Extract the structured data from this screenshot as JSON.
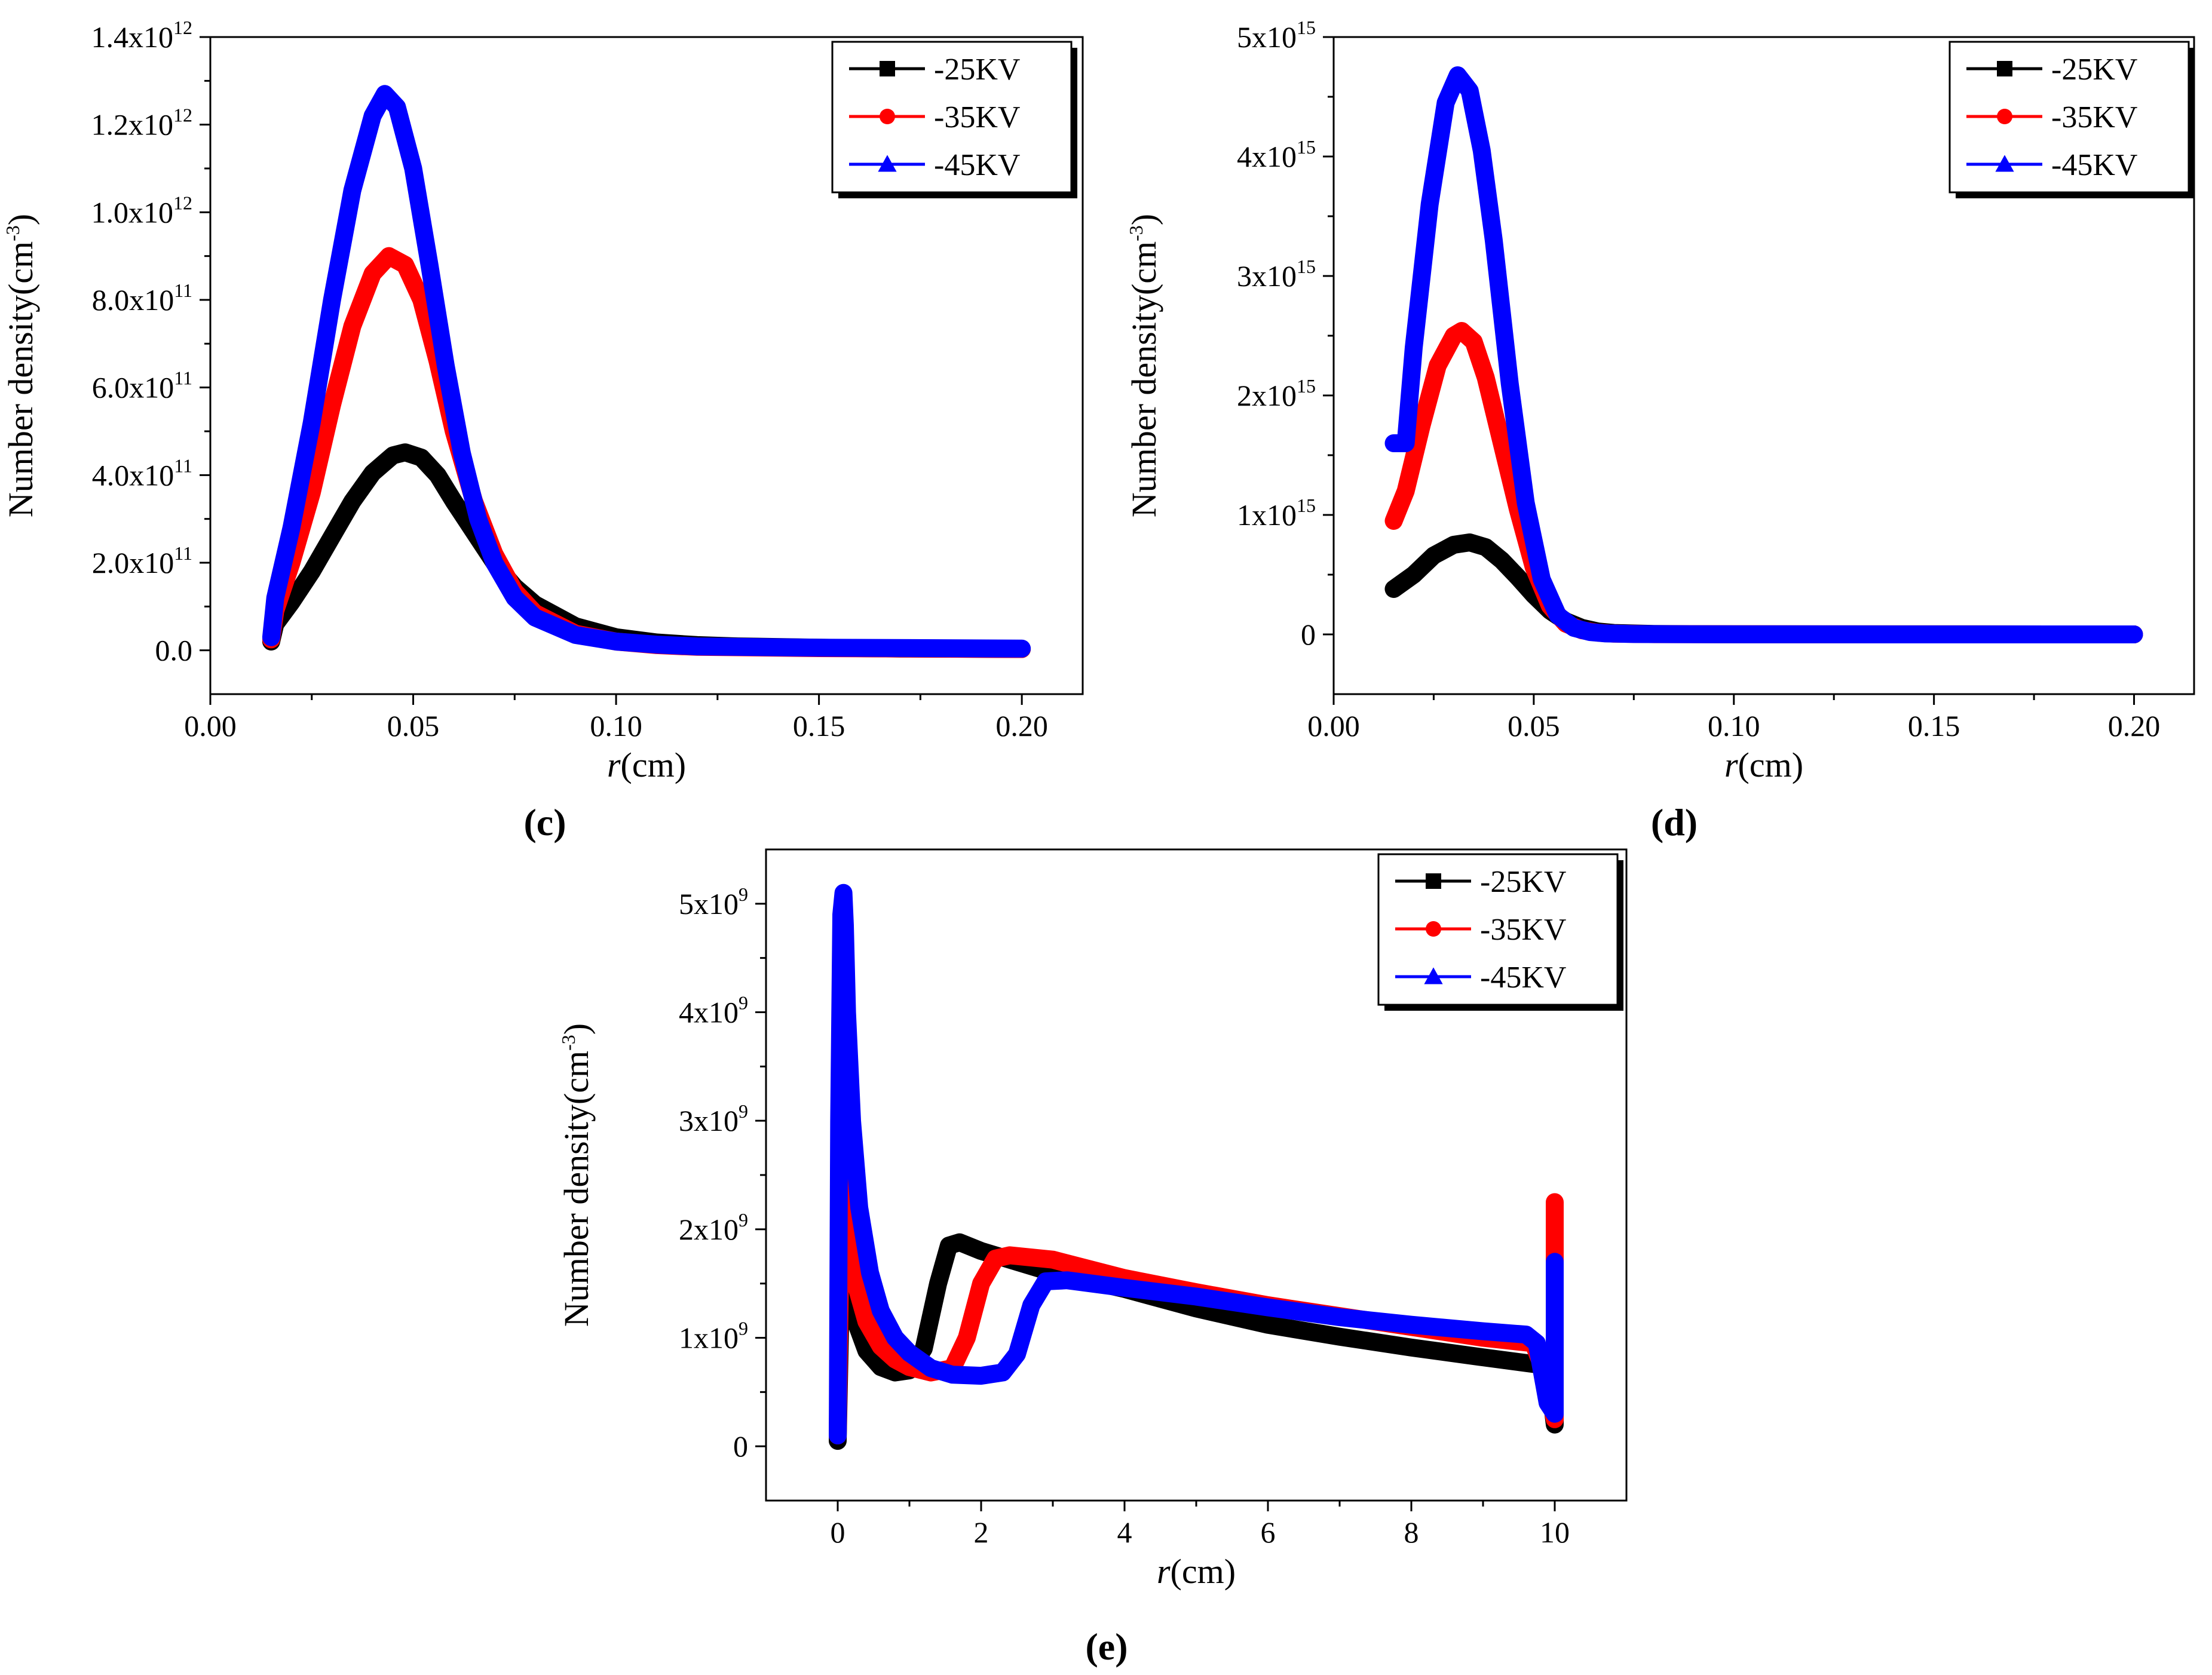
{
  "chart_data": [
    {
      "panel": "c",
      "type": "line",
      "xlabel_italic": "r",
      "xlabel_unit": "(cm)",
      "ylabel_base": "Number density(cm",
      "ylabel_exp": "-3",
      "ylabel_close": ")",
      "xlim": [
        0.0,
        0.215
      ],
      "ylim": [
        -100000000000.0,
        1400000000000.0
      ],
      "xticks": [
        0.0,
        0.05,
        0.1,
        0.15,
        0.2
      ],
      "xtick_labels": [
        "0.00",
        "0.05",
        "0.10",
        "0.15",
        "0.20"
      ],
      "yticks": [
        0,
        200000000000.0,
        400000000000.0,
        600000000000.0,
        800000000000.0,
        1000000000000.0,
        1200000000000.0,
        1400000000000.0
      ],
      "ytick_labels": [
        {
          "base": "0.0",
          "exp": ""
        },
        {
          "base": "2.0x10",
          "exp": "11"
        },
        {
          "base": "4.0x10",
          "exp": "11"
        },
        {
          "base": "6.0x10",
          "exp": "11"
        },
        {
          "base": "8.0x10",
          "exp": "11"
        },
        {
          "base": "1.0x10",
          "exp": "12"
        },
        {
          "base": "1.2x10",
          "exp": "12"
        },
        {
          "base": "1.4x10",
          "exp": "12"
        }
      ],
      "legend_position": "top-right",
      "series": [
        {
          "name": "-25KV",
          "color": "#000000",
          "marker": "square",
          "x": [
            0.015,
            0.016,
            0.02,
            0.025,
            0.03,
            0.035,
            0.04,
            0.045,
            0.048,
            0.052,
            0.056,
            0.06,
            0.065,
            0.07,
            0.075,
            0.08,
            0.09,
            0.1,
            0.11,
            0.12,
            0.13,
            0.15,
            0.17,
            0.2
          ],
          "values": [
            20000000000.0,
            60000000000.0,
            110000000000.0,
            180000000000.0,
            260000000000.0,
            340000000000.0,
            405000000000.0,
            445000000000.0,
            452000000000.0,
            440000000000.0,
            400000000000.0,
            340000000000.0,
            270000000000.0,
            200000000000.0,
            145000000000.0,
            105000000000.0,
            55000000000.0,
            30000000000.0,
            18000000000.0,
            12000000000.0,
            9000000000.0,
            6000000000.0,
            4000000000.0,
            3000000000.0
          ]
        },
        {
          "name": "-35KV",
          "color": "#ff0000",
          "marker": "circle",
          "x": [
            0.015,
            0.016,
            0.02,
            0.025,
            0.03,
            0.035,
            0.04,
            0.044,
            0.048,
            0.052,
            0.056,
            0.06,
            0.065,
            0.07,
            0.075,
            0.08,
            0.09,
            0.1,
            0.11,
            0.12,
            0.15,
            0.2
          ],
          "values": [
            25000000000.0,
            90000000000.0,
            200000000000.0,
            360000000000.0,
            560000000000.0,
            740000000000.0,
            860000000000.0,
            900000000000.0,
            880000000000.0,
            800000000000.0,
            660000000000.0,
            500000000000.0,
            340000000000.0,
            220000000000.0,
            135000000000.0,
            85000000000.0,
            38000000000.0,
            20000000000.0,
            12000000000.0,
            8000000000.0,
            5000000000.0,
            3000000000.0
          ]
        },
        {
          "name": "-45KV",
          "color": "#0000ff",
          "marker": "triangle",
          "x": [
            0.015,
            0.016,
            0.02,
            0.025,
            0.03,
            0.035,
            0.04,
            0.043,
            0.046,
            0.05,
            0.054,
            0.058,
            0.062,
            0.066,
            0.07,
            0.075,
            0.08,
            0.09,
            0.1,
            0.11,
            0.12,
            0.15,
            0.2
          ],
          "values": [
            30000000000.0,
            120000000000.0,
            280000000000.0,
            520000000000.0,
            800000000000.0,
            1050000000000.0,
            1220000000000.0,
            1270000000000.0,
            1240000000000.0,
            1100000000000.0,
            880000000000.0,
            650000000000.0,
            450000000000.0,
            300000000000.0,
            200000000000.0,
            120000000000.0,
            75000000000.0,
            35000000000.0,
            20000000000.0,
            13000000000.0,
            9000000000.0,
            6000000000.0,
            4000000000.0
          ]
        }
      ]
    },
    {
      "panel": "d",
      "type": "line",
      "xlabel_italic": "r",
      "xlabel_unit": "(cm)",
      "ylabel_base": "Number density(cm",
      "ylabel_exp": "-3",
      "ylabel_close": ")",
      "xlim": [
        0.0,
        0.215
      ],
      "ylim": [
        -500000000000000.0,
        5000000000000000.0
      ],
      "xticks": [
        0.0,
        0.05,
        0.1,
        0.15,
        0.2
      ],
      "xtick_labels": [
        "0.00",
        "0.05",
        "0.10",
        "0.15",
        "0.20"
      ],
      "yticks": [
        0,
        1000000000000000.0,
        2000000000000000.0,
        3000000000000000.0,
        4000000000000000.0,
        5000000000000000.0
      ],
      "ytick_labels": [
        {
          "base": "0",
          "exp": ""
        },
        {
          "base": "1x10",
          "exp": "15"
        },
        {
          "base": "2x10",
          "exp": "15"
        },
        {
          "base": "3x10",
          "exp": "15"
        },
        {
          "base": "4x10",
          "exp": "15"
        },
        {
          "base": "5x10",
          "exp": "15"
        }
      ],
      "legend_position": "top-right",
      "series": [
        {
          "name": "-25KV",
          "color": "#000000",
          "marker": "square",
          "x": [
            0.015,
            0.02,
            0.025,
            0.03,
            0.034,
            0.038,
            0.042,
            0.046,
            0.05,
            0.054,
            0.058,
            0.062,
            0.066,
            0.07,
            0.08,
            0.1,
            0.15,
            0.2
          ],
          "values": [
            380000000000000.0,
            500000000000000.0,
            660000000000000.0,
            750000000000000.0,
            770000000000000.0,
            730000000000000.0,
            620000000000000.0,
            480000000000000.0,
            330000000000000.0,
            200000000000000.0,
            110000000000000.0,
            55000000000000.0,
            25000000000000.0,
            12000000000000.0,
            4000000000000.0,
            1000000000000.0,
            400000000000.0,
            200000000000.0
          ]
        },
        {
          "name": "-35KV",
          "color": "#ff0000",
          "marker": "circle",
          "x": [
            0.015,
            0.018,
            0.022,
            0.026,
            0.03,
            0.032,
            0.035,
            0.038,
            0.042,
            0.046,
            0.05,
            0.054,
            0.058,
            0.062,
            0.066,
            0.07,
            0.08,
            0.1,
            0.15,
            0.2
          ],
          "values": [
            950000000000000.0,
            1200000000000000.0,
            1750000000000000.0,
            2250000000000000.0,
            2500000000000000.0,
            2540000000000000.0,
            2450000000000000.0,
            2150000000000000.0,
            1600000000000000.0,
            1050000000000000.0,
            560000000000000.0,
            240000000000000.0,
            90000000000000.0,
            35000000000000.0,
            14000000000000.0,
            6000000000000.0,
            2000000000000.0,
            800000000000.0,
            300000000000.0,
            150000000000.0
          ]
        },
        {
          "name": "-45KV",
          "color": "#0000ff",
          "marker": "triangle",
          "x": [
            0.015,
            0.018,
            0.02,
            0.024,
            0.028,
            0.031,
            0.034,
            0.037,
            0.04,
            0.044,
            0.048,
            0.052,
            0.056,
            0.06,
            0.064,
            0.068,
            0.075,
            0.09,
            0.12,
            0.16,
            0.2
          ],
          "values": [
            1600000000000000.0,
            1600000000000000.0,
            2400000000000000.0,
            3600000000000000.0,
            4450000000000000.0,
            4680000000000000.0,
            4550000000000000.0,
            4050000000000000.0,
            3300000000000000.0,
            2100000000000000.0,
            1100000000000000.0,
            460000000000000.0,
            160000000000000.0,
            55000000000000.0,
            20000000000000.0,
            8000000000000.0,
            3000000000000.0,
            1000000000000.0,
            400000000000.0,
            200000000000.0,
            100000000000.0
          ]
        }
      ]
    },
    {
      "panel": "e",
      "type": "line",
      "xlabel_italic": "r",
      "xlabel_unit": "(cm)",
      "ylabel_base": "Number density(cm",
      "ylabel_exp": "-3",
      "ylabel_close": ")",
      "xlim": [
        -1.0,
        11.0
      ],
      "ylim": [
        -500000000.0,
        5500000000.0
      ],
      "xticks": [
        0,
        2,
        4,
        6,
        8,
        10
      ],
      "xtick_labels": [
        "0",
        "2",
        "4",
        "6",
        "8",
        "10"
      ],
      "yticks": [
        0,
        1000000000.0,
        2000000000.0,
        3000000000.0,
        4000000000.0,
        5000000000.0
      ],
      "ytick_labels": [
        {
          "base": "0",
          "exp": ""
        },
        {
          "base": "1x10",
          "exp": "9"
        },
        {
          "base": "2x10",
          "exp": "9"
        },
        {
          "base": "3x10",
          "exp": "9"
        },
        {
          "base": "4x10",
          "exp": "9"
        },
        {
          "base": "5x10",
          "exp": "9"
        }
      ],
      "legend_position": "top-right",
      "series": [
        {
          "name": "-25KV",
          "color": "#000000",
          "marker": "square",
          "x": [
            0.0,
            0.03,
            0.06,
            0.1,
            0.15,
            0.25,
            0.4,
            0.6,
            0.8,
            1.0,
            1.2,
            1.4,
            1.55,
            1.7,
            2.0,
            3.0,
            4.0,
            5.0,
            6.0,
            7.0,
            8.0,
            9.0,
            9.8,
            9.9,
            10.0,
            10.0,
            10.0
          ],
          "values": [
            50000000.0,
            1000000000.0,
            1900000000.0,
            1800000000.0,
            1500000000.0,
            1150000000.0,
            880000000.0,
            730000000.0,
            680000000.0,
            700000000.0,
            900000000.0,
            1500000000.0,
            1850000000.0,
            1880000000.0,
            1800000000.0,
            1600000000.0,
            1450000000.0,
            1270000000.0,
            1120000000.0,
            1010000000.0,
            910000000.0,
            820000000.0,
            750000000.0,
            730000000.0,
            200000000.0,
            1050000000.0,
            1700000000.0
          ]
        },
        {
          "name": "-35KV",
          "color": "#ff0000",
          "marker": "circle",
          "x": [
            0.0,
            0.03,
            0.06,
            0.1,
            0.15,
            0.25,
            0.4,
            0.6,
            0.8,
            1.0,
            1.3,
            1.6,
            1.8,
            2.0,
            2.2,
            2.4,
            3.0,
            4.0,
            5.0,
            6.0,
            7.0,
            8.0,
            9.0,
            9.7,
            9.85,
            10.0,
            10.0,
            10.0
          ],
          "values": [
            100000000.0,
            1500000000.0,
            2800000000.0,
            2400000000.0,
            2000000000.0,
            1500000000.0,
            1150000000.0,
            920000000.0,
            800000000.0,
            730000000.0,
            680000000.0,
            720000000.0,
            1000000000.0,
            1500000000.0,
            1730000000.0,
            1760000000.0,
            1720000000.0,
            1550000000.0,
            1420000000.0,
            1300000000.0,
            1200000000.0,
            1100000000.0,
            1000000000.0,
            950000000.0,
            700000000.0,
            250000000.0,
            1320000000.0,
            2250000000.0
          ]
        },
        {
          "name": "-45KV",
          "color": "#0000ff",
          "marker": "triangle",
          "x": [
            0.0,
            0.02,
            0.05,
            0.08,
            0.1,
            0.13,
            0.2,
            0.3,
            0.45,
            0.6,
            0.8,
            1.0,
            1.3,
            1.6,
            2.0,
            2.3,
            2.5,
            2.7,
            2.9,
            3.2,
            4.0,
            5.0,
            6.0,
            7.0,
            8.0,
            9.0,
            9.6,
            9.75,
            9.9,
            10.0,
            10.0,
            10.0
          ],
          "values": [
            100000000.0,
            3000000000.0,
            4900000000.0,
            5100000000.0,
            4800000000.0,
            4000000000.0,
            3000000000.0,
            2200000000.0,
            1600000000.0,
            1250000000.0,
            1000000000.0,
            860000000.0,
            720000000.0,
            660000000.0,
            650000000.0,
            680000000.0,
            850000000.0,
            1300000000.0,
            1520000000.0,
            1530000000.0,
            1460000000.0,
            1380000000.0,
            1280000000.0,
            1190000000.0,
            1120000000.0,
            1060000000.0,
            1030000000.0,
            950000000.0,
            400000000.0,
            300000000.0,
            1050000000.0,
            1700000000.0
          ]
        }
      ]
    }
  ],
  "panel_labels": [
    "(c)",
    "(d)",
    "(e)"
  ]
}
